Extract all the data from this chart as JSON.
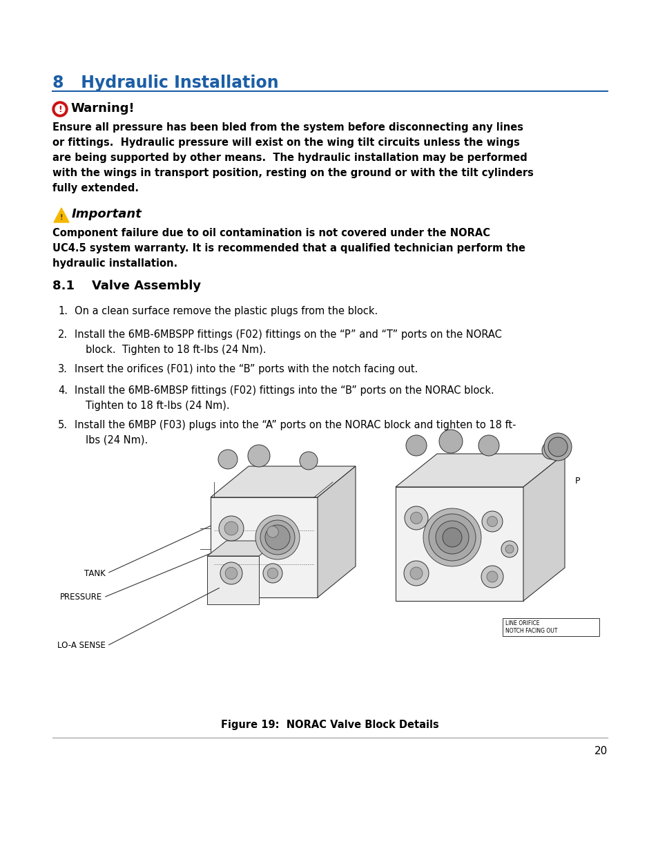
{
  "title": "8   Hydraulic Installation",
  "title_color": "#1B5EA6",
  "warning_title": "Warning!",
  "warning_lines": [
    "Ensure all pressure has been bled from the system before disconnecting any lines",
    "or fittings.  Hydraulic pressure will exist on the wing tilt circuits unless the wings",
    "are being supported by other means.  The hydraulic installation may be performed",
    "with the wings in transport position, resting on the ground or with the tilt cylinders",
    "fully extended."
  ],
  "important_title": "Important",
  "important_lines": [
    "Component failure due to oil contamination is not covered under the NORAC",
    "UC4.5 system warranty. It is recommended that a qualified technician perform the",
    "hydraulic installation."
  ],
  "section_title": "8.1    Valve Assembly",
  "step1": "On a clean surface remove the plastic plugs from the block.",
  "step2a": "Install the 6MB-6MBSPP fittings (F02) fittings on the “P” and “T” ports on the NORAC",
  "step2b": "block.  Tighten to 18 ft-lbs (24 Nm).",
  "step3": "Insert the orifices (F01) into the “B” ports with the notch facing out.",
  "step4a": "Install the 6MB-6MBSP fittings (F02) fittings into the “B” ports on the NORAC block.",
  "step4b": "Tighten to 18 ft-lbs (24 Nm).",
  "step5a": "Install the 6MBP (F03) plugs into the “A” ports on the NORAC block and tighten to 18 ft-",
  "step5b": "lbs (24 Nm).",
  "label_tank": "TANK",
  "label_pressure": "PRESSURE",
  "label_losense": "LO-A SENSE",
  "label_p": "P",
  "ann_line1": "LINE ORIFICE",
  "ann_line2": "NOTCH FACING OUT",
  "figure_caption": "Figure 19:  NORAC Valve Block Details",
  "page_number": "20",
  "bg_color": "#ffffff",
  "text_color": "#000000",
  "warn_icon_color": "#CC1111",
  "imp_icon_color": "#F5B800",
  "rule_color": "#1B5EA6",
  "bottom_rule_color": "#999999"
}
